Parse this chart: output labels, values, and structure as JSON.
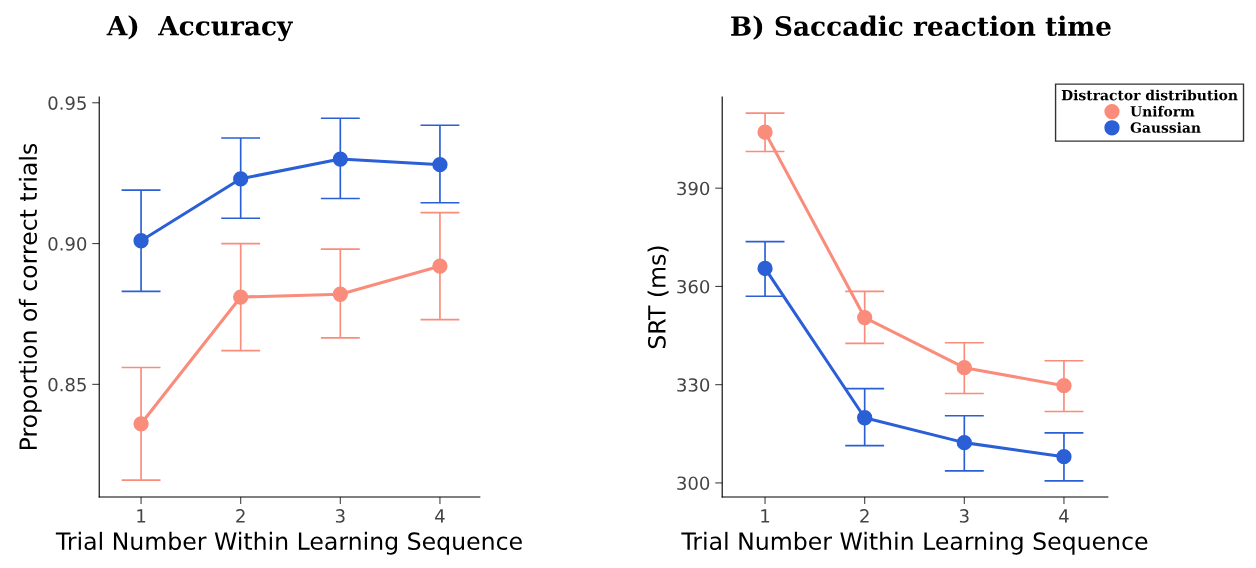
{
  "chart_data": [
    {
      "type": "line",
      "title": "A)  Accuracy",
      "xlabel": "Trial Number Within Learning Sequence",
      "ylabel": "Proportion of correct trials",
      "x": [
        1,
        2,
        3,
        4
      ],
      "xlim": [
        0.58,
        4.4
      ],
      "xticks": [
        1,
        2,
        3,
        4
      ],
      "ylim": [
        0.81,
        0.952
      ],
      "yticks": [
        {
          "value": 0.85,
          "label": "0.85"
        },
        {
          "value": 0.9,
          "label": "0.90"
        },
        {
          "value": 0.95,
          "label": "0.95"
        }
      ],
      "marker": "circle",
      "line_style": "solid",
      "grid": false,
      "legend": false,
      "series": [
        {
          "color": "#fa8c7c",
          "values": [
            0.836,
            0.881,
            0.882,
            0.892
          ],
          "errors": [
            [
              0.816,
              0.856
            ],
            [
              0.862,
              0.9
            ],
            [
              0.8665,
              0.898
            ],
            [
              0.873,
              0.911
            ]
          ]
        },
        {
          "color": "#2a5fd6",
          "values": [
            0.901,
            0.923,
            0.93,
            0.928
          ],
          "errors": [
            [
              0.883,
              0.919
            ],
            [
              0.909,
              0.9375
            ],
            [
              0.916,
              0.9445
            ],
            [
              0.9145,
              0.942
            ]
          ]
        }
      ]
    },
    {
      "type": "line",
      "title": "B) Saccadic reaction time",
      "xlabel": "Trial Number Within Learning Sequence",
      "ylabel": "SRT (ms)",
      "x": [
        1,
        2,
        3,
        4
      ],
      "xlim": [
        0.57,
        4.44
      ],
      "xticks": [
        1,
        2,
        3,
        4
      ],
      "ylim": [
        295.7,
        417.8
      ],
      "yticks": [
        300,
        330,
        360,
        390
      ],
      "marker": "circle",
      "line_style": "solid",
      "grid": false,
      "legend": "top right",
      "legend_title": "Distractor distribution",
      "series": [
        {
          "name": "Uniform",
          "color": "#fa8c7c",
          "values": [
            407.1,
            350.5,
            335.2,
            329.7
          ],
          "errors": [
            [
              401.2,
              412.9
            ],
            [
              342.6,
              358.5
            ],
            [
              327.3,
              342.8
            ],
            [
              321.8,
              337.3
            ]
          ]
        },
        {
          "name": "Gaussian",
          "color": "#2a5fd6",
          "values": [
            365.5,
            319.9,
            312.3,
            308
          ],
          "errors": [
            [
              357,
              373.7
            ],
            [
              311.4,
              328.8
            ],
            [
              303.7,
              320.5
            ],
            [
              300.6,
              315.3
            ]
          ]
        }
      ]
    }
  ]
}
